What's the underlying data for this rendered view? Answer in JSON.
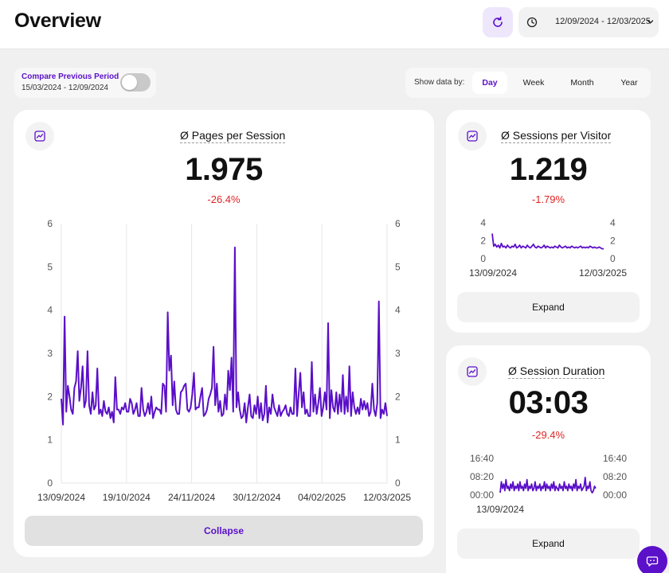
{
  "header": {
    "title": "Overview",
    "date_range": "12/09/2024 - 12/03/2025"
  },
  "compare": {
    "label": "Compare Previous Period",
    "range": "15/03/2024 - 12/09/2024",
    "enabled": false
  },
  "show_data_by": {
    "label": "Show data by:",
    "options": [
      "Day",
      "Week",
      "Month",
      "Year"
    ],
    "selected": "Day"
  },
  "colors": {
    "accent": "#5b10c9",
    "negative": "#e02424",
    "line": "#5a0fc8"
  },
  "cards": {
    "pages": {
      "title": "Ø Pages per Session",
      "value": "1.975",
      "change": "-26.4%",
      "button": "Collapse"
    },
    "sessions": {
      "title": "Ø Sessions per Visitor",
      "value": "1.219",
      "change": "-1.79%",
      "button": "Expand"
    },
    "duration": {
      "title": "Ø Session Duration",
      "value": "03:03",
      "change": "-29.4%",
      "button": "Expand"
    }
  },
  "chart_data": [
    {
      "type": "line",
      "title": "Ø Pages per Session",
      "x_tick_labels": [
        "13/09/2024",
        "19/10/2024",
        "24/11/2024",
        "30/12/2024",
        "04/02/2025",
        "12/03/2025"
      ],
      "y_ticks": [
        0,
        1,
        2,
        3,
        4,
        5,
        6
      ],
      "ylim": [
        0,
        6
      ],
      "grid": "vertical",
      "series": [
        {
          "values": [
            1.95,
            1.35,
            3.85,
            1.65,
            2.25,
            2.0,
            1.7,
            1.6,
            2.2,
            2.35,
            3.05,
            1.9,
            2.2,
            2.7,
            1.75,
            1.9,
            3.05,
            1.8,
            1.6,
            2.1,
            1.7,
            1.8,
            2.65,
            1.6,
            1.7,
            1.55,
            1.9,
            1.65,
            1.6,
            1.75,
            1.5,
            1.65,
            1.4,
            2.45,
            1.7,
            1.7,
            1.6,
            1.75,
            1.7,
            1.85,
            1.65,
            1.65,
            1.95,
            1.85,
            1.6,
            1.7,
            1.85,
            1.55,
            1.55,
            2.2,
            1.7,
            1.55,
            1.65,
            1.85,
            1.6,
            2.0,
            1.5,
            1.65,
            1.75,
            1.7,
            1.7,
            1.6,
            2.3,
            2.25,
            1.65,
            3.95,
            2.6,
            2.95,
            1.8,
            2.35,
            1.7,
            1.6,
            1.6,
            2.1,
            2.15,
            2.25,
            2.3,
            1.7,
            1.65,
            1.75,
            2.05,
            2.55,
            1.7,
            1.75,
            1.75,
            2.0,
            2.2,
            1.55,
            1.6,
            1.7,
            1.95,
            2.05,
            2.2,
            3.15,
            1.8,
            2.3,
            1.65,
            1.9,
            1.55,
            1.6,
            2.05,
            1.7,
            2.6,
            2.15,
            2.9,
            1.65,
            5.45,
            1.75,
            2.1,
            1.7,
            1.5,
            1.55,
            1.85,
            1.4,
            1.75,
            2.05,
            1.55,
            1.5,
            1.8,
            1.6,
            2.0,
            1.5,
            1.85,
            1.45,
            1.6,
            2.25,
            1.4,
            1.75,
            1.6,
            2.05,
            1.75,
            1.65,
            1.55,
            1.8,
            1.55,
            1.65,
            1.7,
            1.8,
            1.6,
            1.55,
            1.75,
            1.6,
            1.6,
            2.65,
            1.55,
            2.05,
            2.55,
            1.75,
            2.1,
            1.6,
            1.7,
            1.55,
            1.55,
            2.8,
            1.65,
            2.05,
            1.6,
            1.85,
            2.2,
            1.55,
            1.75,
            2.1,
            1.7,
            3.7,
            1.5,
            2.15,
            1.75,
            1.65,
            2.1,
            1.6,
            2.05,
            1.65,
            2.5,
            1.6,
            2.0,
            1.65,
            2.7,
            1.55,
            2.1,
            1.75,
            1.6,
            1.75,
            1.6,
            1.95,
            1.7,
            1.9,
            1.7,
            1.85,
            1.55,
            1.65,
            2.3,
            1.7,
            1.55,
            1.85,
            4.2,
            1.5,
            1.7,
            1.6,
            1.85,
            1.55
          ]
        }
      ]
    },
    {
      "type": "line",
      "title": "Ø Sessions per Visitor",
      "x_tick_labels": [
        "13/09/2024",
        "12/03/2025"
      ],
      "y_ticks": [
        0,
        2,
        4
      ],
      "ylim": [
        0,
        4
      ],
      "grid": "none",
      "series": [
        {
          "values": [
            2.8,
            1.4,
            1.6,
            1.3,
            1.5,
            1.2,
            1.7,
            1.3,
            1.4,
            1.2,
            1.5,
            1.3,
            1.2,
            1.4,
            1.3,
            1.6,
            1.2,
            1.3,
            1.5,
            1.2,
            1.4,
            1.3,
            1.2,
            1.5,
            1.3,
            1.2,
            1.4,
            1.6,
            1.3,
            1.2,
            1.4,
            1.3,
            1.2,
            1.3,
            1.5,
            1.2,
            1.4,
            1.3,
            1.2,
            1.3,
            1.2,
            1.4,
            1.3,
            1.2,
            1.5,
            1.3,
            1.2,
            1.3,
            1.4,
            1.2,
            1.3,
            1.2,
            1.4,
            1.3,
            1.2,
            1.3,
            1.2,
            1.3,
            1.4,
            1.2,
            1.3,
            1.2,
            1.3,
            1.2,
            1.4,
            1.3,
            1.2,
            1.3,
            1.2,
            1.2,
            1.3,
            1.2,
            1.1,
            1.1
          ]
        }
      ]
    },
    {
      "type": "line",
      "title": "Ø Session Duration",
      "x_tick_labels": [
        "13/09/2024"
      ],
      "y_tick_labels": [
        "00:00",
        "08:20",
        "16:40"
      ],
      "ylim": [
        "00:00",
        "16:40"
      ],
      "grid": "none",
      "series": [
        {
          "values": [
            1,
            6,
            3,
            5,
            2,
            7,
            3,
            4,
            2,
            5,
            3,
            6,
            2,
            4,
            3,
            5,
            2,
            6,
            3,
            4,
            2,
            5,
            3,
            7,
            2,
            4,
            3,
            5,
            2,
            3,
            6,
            2,
            4,
            3,
            5,
            2,
            4,
            3,
            6,
            2,
            5,
            3,
            4,
            2,
            5,
            3,
            6,
            2,
            4,
            3,
            2,
            5,
            3,
            4,
            2,
            6,
            3,
            4,
            2,
            5,
            3,
            4,
            2,
            5,
            3,
            7,
            2,
            4,
            3,
            5,
            2,
            3,
            4,
            8,
            2,
            4,
            3,
            6,
            2,
            1,
            2,
            4,
            3
          ]
        }
      ]
    }
  ]
}
